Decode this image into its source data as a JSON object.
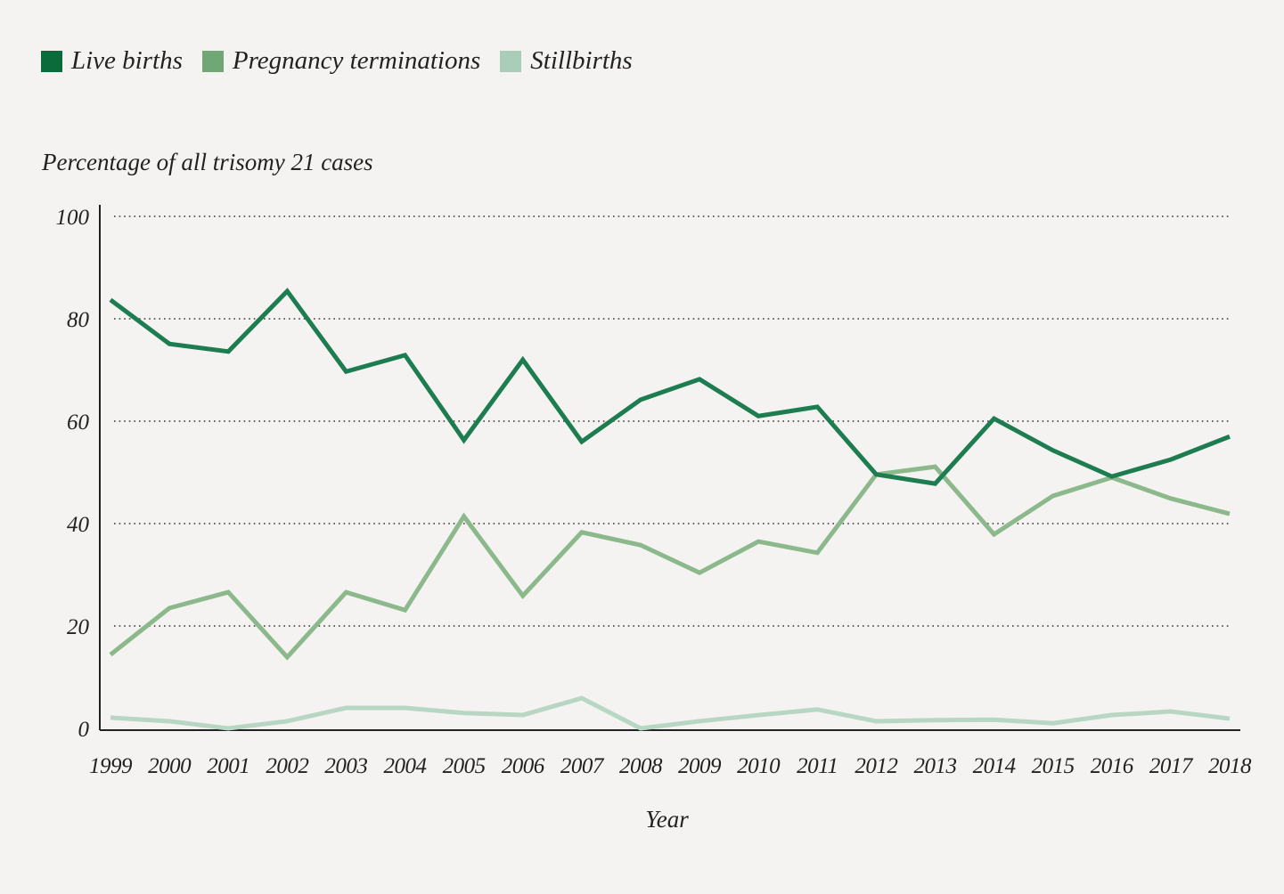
{
  "chart_data": {
    "type": "line",
    "title": "",
    "ylabel": "Percentage of all trisomy 21 cases",
    "xlabel": "Year",
    "ylim": [
      0,
      100
    ],
    "yticks": [
      0,
      20,
      40,
      60,
      80,
      100
    ],
    "grid": "horizontal dotted",
    "legend_placement": "top-left",
    "x": [
      "1999",
      "2000",
      "2001",
      "2002",
      "2003",
      "2004",
      "2005",
      "2006",
      "2007",
      "2008",
      "2009",
      "2010",
      "2011",
      "2012",
      "2013",
      "2014",
      "2015",
      "2016",
      "2017",
      "2018"
    ],
    "series": [
      {
        "name": "Live births",
        "color": "#1d7d50",
        "swatch": "#0b6b3a",
        "values": [
          83.7,
          75.1,
          73.6,
          85.4,
          69.7,
          72.9,
          56.3,
          72.0,
          56.0,
          64.2,
          68.2,
          61.0,
          62.8,
          49.6,
          47.8,
          60.5,
          54.3,
          49.2,
          52.5,
          57.0
        ]
      },
      {
        "name": "Pregnancy terminations",
        "color": "#8cb98b",
        "swatch": "#6fa775",
        "values": [
          14.4,
          23.5,
          26.6,
          13.9,
          26.6,
          23.1,
          41.4,
          25.9,
          38.3,
          35.8,
          30.4,
          36.5,
          34.3,
          49.6,
          51.1,
          37.9,
          45.4,
          49.0,
          44.9,
          41.9
        ]
      },
      {
        "name": "Stillbirths",
        "color": "#b7d6c3",
        "swatch": "#a9cdb8",
        "values": [
          2.1,
          1.4,
          0,
          1.4,
          4.0,
          4.0,
          3.0,
          2.6,
          5.9,
          0,
          1.4,
          2.6,
          3.7,
          1.4,
          1.6,
          1.7,
          1.0,
          2.6,
          3.3,
          1.9
        ]
      }
    ]
  }
}
